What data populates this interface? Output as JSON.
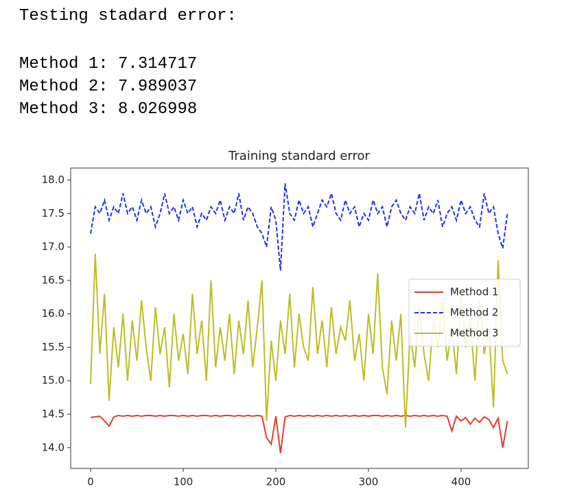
{
  "output": {
    "lines": [
      "Testing stadard error:",
      "Method 1: 7.314717",
      "Method 2: 7.989037",
      "Method 3: 8.026998"
    ]
  },
  "chart_data": {
    "type": "line",
    "title": "Training standard error",
    "x": [
      0,
      5,
      10,
      15,
      20,
      25,
      30,
      35,
      40,
      45,
      50,
      55,
      60,
      65,
      70,
      75,
      80,
      85,
      90,
      95,
      100,
      105,
      110,
      115,
      120,
      125,
      130,
      135,
      140,
      145,
      150,
      155,
      160,
      165,
      170,
      175,
      180,
      185,
      190,
      195,
      200,
      205,
      210,
      215,
      220,
      225,
      230,
      235,
      240,
      245,
      250,
      255,
      260,
      265,
      270,
      275,
      280,
      285,
      290,
      295,
      300,
      305,
      310,
      315,
      320,
      325,
      330,
      335,
      340,
      345,
      350,
      355,
      360,
      365,
      370,
      375,
      380,
      385,
      390,
      395,
      400,
      405,
      410,
      415,
      420,
      425,
      430,
      435,
      440,
      445,
      450
    ],
    "series": [
      {
        "name": "Method 1",
        "color": "#e8392b",
        "dash": false,
        "values": [
          14.45,
          14.46,
          14.47,
          14.4,
          14.32,
          14.46,
          14.48,
          14.47,
          14.48,
          14.47,
          14.48,
          14.47,
          14.48,
          14.48,
          14.47,
          14.48,
          14.47,
          14.48,
          14.48,
          14.47,
          14.48,
          14.47,
          14.48,
          14.47,
          14.48,
          14.48,
          14.47,
          14.48,
          14.47,
          14.48,
          14.48,
          14.47,
          14.48,
          14.47,
          14.48,
          14.47,
          14.48,
          14.47,
          14.15,
          14.05,
          14.47,
          13.92,
          14.46,
          14.48,
          14.47,
          14.48,
          14.47,
          14.48,
          14.47,
          14.48,
          14.47,
          14.48,
          14.47,
          14.48,
          14.47,
          14.48,
          14.47,
          14.48,
          14.47,
          14.48,
          14.47,
          14.48,
          14.48,
          14.47,
          14.48,
          14.47,
          14.48,
          14.47,
          14.48,
          14.47,
          14.48,
          14.47,
          14.48,
          14.47,
          14.48,
          14.47,
          14.48,
          14.47,
          14.25,
          14.47,
          14.4,
          14.45,
          14.35,
          14.44,
          14.38,
          14.46,
          14.42,
          14.3,
          14.44,
          14.0,
          14.4
        ]
      },
      {
        "name": "Method 2",
        "color": "#1f2fe8",
        "dash": true,
        "values": [
          17.2,
          17.6,
          17.5,
          17.7,
          17.4,
          17.6,
          17.5,
          17.8,
          17.5,
          17.6,
          17.4,
          17.7,
          17.5,
          17.6,
          17.3,
          17.5,
          17.8,
          17.5,
          17.6,
          17.4,
          17.7,
          17.5,
          17.6,
          17.3,
          17.5,
          17.4,
          17.6,
          17.5,
          17.7,
          17.4,
          17.6,
          17.5,
          17.8,
          17.4,
          17.6,
          17.5,
          17.3,
          17.2,
          17.0,
          17.6,
          17.4,
          16.65,
          17.95,
          17.5,
          17.4,
          17.7,
          17.5,
          17.6,
          17.3,
          17.5,
          17.7,
          17.6,
          17.8,
          17.5,
          17.4,
          17.7,
          17.5,
          17.6,
          17.3,
          17.5,
          17.4,
          17.7,
          17.5,
          17.6,
          17.3,
          17.6,
          17.7,
          17.5,
          17.4,
          17.6,
          17.5,
          17.8,
          17.4,
          17.6,
          17.5,
          17.7,
          17.3,
          17.5,
          17.6,
          17.4,
          17.7,
          17.5,
          17.6,
          17.4,
          17.3,
          17.8,
          17.5,
          17.6,
          17.2,
          16.98,
          17.5
        ]
      },
      {
        "name": "Method 3",
        "color": "#bcbd22",
        "dash": false,
        "values": [
          14.95,
          16.9,
          15.4,
          16.3,
          14.7,
          15.8,
          15.2,
          16.0,
          15.0,
          15.9,
          15.3,
          16.2,
          15.5,
          15.0,
          16.1,
          15.4,
          15.8,
          14.9,
          16.0,
          15.3,
          15.7,
          15.1,
          16.3,
          15.4,
          15.9,
          15.0,
          16.5,
          15.2,
          15.8,
          15.3,
          16.0,
          15.1,
          15.9,
          15.4,
          16.2,
          15.2,
          15.8,
          16.5,
          14.4,
          15.6,
          15.0,
          15.9,
          15.4,
          16.3,
          15.2,
          16.0,
          15.5,
          15.3,
          16.4,
          15.4,
          15.9,
          15.2,
          16.1,
          15.4,
          15.8,
          15.6,
          16.2,
          15.3,
          15.7,
          15.0,
          16.0,
          15.4,
          16.6,
          15.2,
          14.8,
          15.9,
          15.3,
          16.0,
          14.3,
          15.7,
          15.2,
          16.1,
          15.4,
          15.0,
          15.9,
          15.5,
          16.2,
          15.3,
          15.8,
          15.1,
          16.3,
          15.5,
          15.9,
          15.0,
          16.2,
          15.4,
          15.8,
          14.6,
          16.8,
          15.3,
          15.1
        ]
      }
    ],
    "xlim": [
      -21.5,
      472.6
    ],
    "ylim": [
      13.69,
      18.18
    ],
    "xticks": [
      0,
      100,
      200,
      300,
      400
    ],
    "yticks": [
      {
        "value": 14,
        "label": "14.0"
      },
      14.5,
      {
        "value": 15,
        "label": "15.0"
      },
      15.5,
      {
        "value": 16,
        "label": "16.0"
      },
      16.5,
      {
        "value": 17,
        "label": "17.0"
      },
      17.5,
      {
        "value": 18,
        "label": "18.0"
      }
    ],
    "legend": "center right",
    "grid": false
  }
}
